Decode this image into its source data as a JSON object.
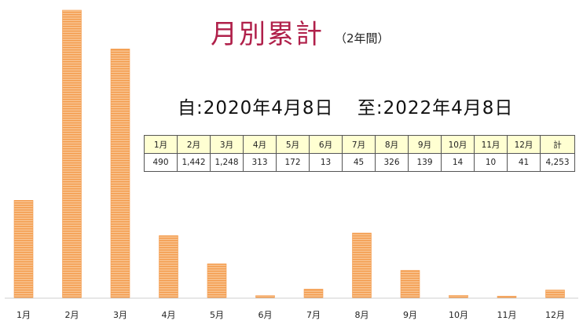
{
  "title": "月別累計",
  "subtitle": "（2年間）",
  "period": {
    "from": "自:2020年4月8日",
    "to": "至:2022年4月8日"
  },
  "table": {
    "headers": [
      "1月",
      "2月",
      "3月",
      "4月",
      "5月",
      "6月",
      "7月",
      "8月",
      "9月",
      "10月",
      "11月",
      "12月",
      "計"
    ],
    "values": [
      "490",
      "1,442",
      "1,248",
      "313",
      "172",
      "13",
      "45",
      "326",
      "139",
      "14",
      "10",
      "41",
      "4,253"
    ]
  },
  "chart_data": {
    "type": "bar",
    "categories": [
      "1月",
      "2月",
      "3月",
      "4月",
      "5月",
      "6月",
      "7月",
      "8月",
      "9月",
      "10月",
      "11月",
      "12月"
    ],
    "values": [
      490,
      1442,
      1248,
      313,
      172,
      13,
      45,
      326,
      139,
      14,
      10,
      41
    ],
    "ylim": [
      0,
      1442
    ],
    "grid": false,
    "bar_color": "#f39a4a",
    "bar_stripe_color": "#fbd3ab"
  }
}
